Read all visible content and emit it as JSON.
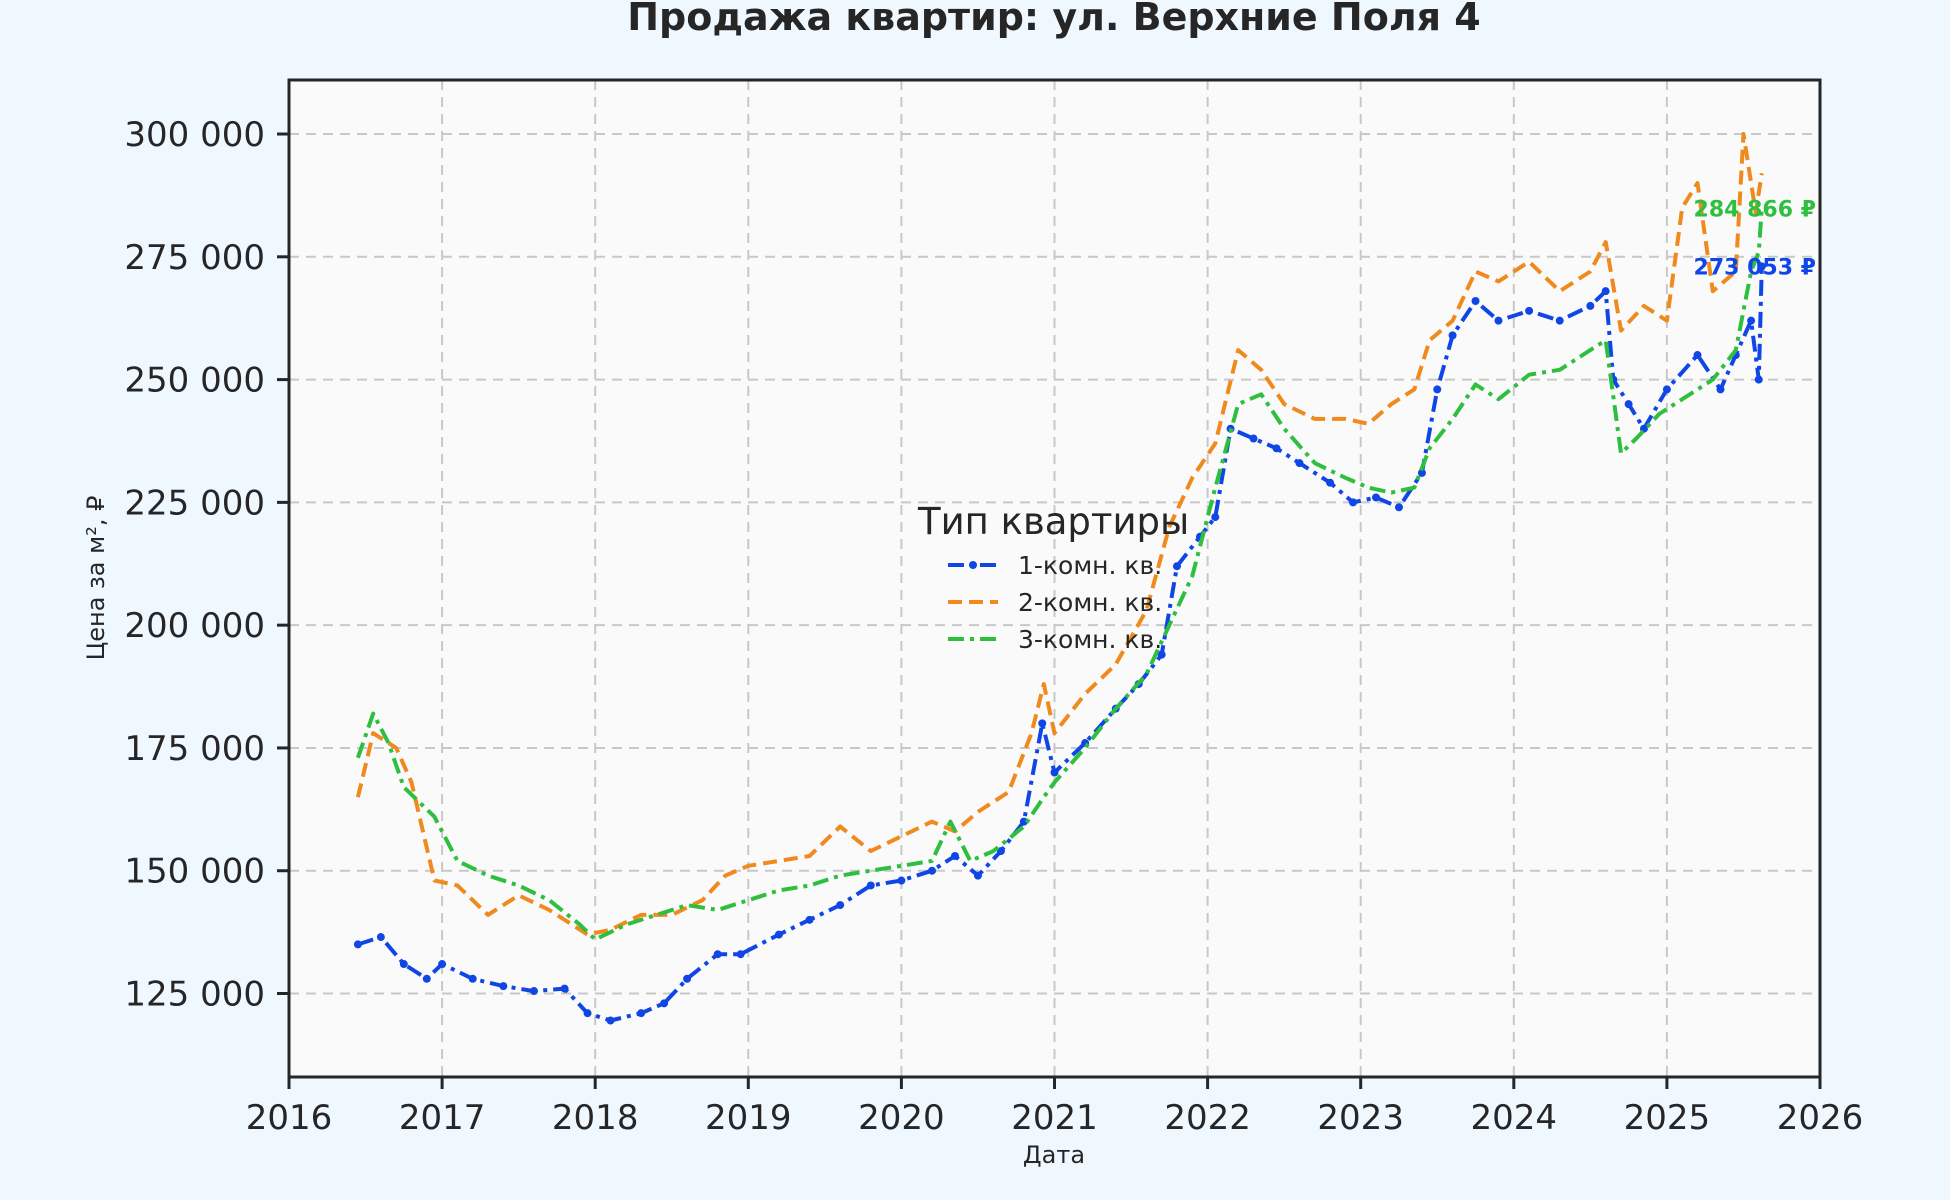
{
  "chart_data": {
    "type": "line",
    "title": "Продажа квартир: ул. Верхние Поля 4",
    "xlabel": "Дата",
    "ylabel": "Цена за м², ₽",
    "xlim": [
      2016,
      2026
    ],
    "ylim": [
      108000,
      311000
    ],
    "x_ticks": [
      2016,
      2017,
      2018,
      2019,
      2020,
      2021,
      2022,
      2023,
      2024,
      2025,
      2026
    ],
    "x_tick_labels": [
      "2016",
      "2017",
      "2018",
      "2019",
      "2020",
      "2021",
      "2022",
      "2023",
      "2024",
      "2025",
      "2026"
    ],
    "y_ticks": [
      125000,
      150000,
      175000,
      200000,
      225000,
      250000,
      275000,
      300000
    ],
    "y_tick_labels": [
      "125 000",
      "150 000",
      "175 000",
      "200 000",
      "225 000",
      "250 000",
      "275 000",
      "300 000"
    ],
    "grid": true,
    "legend": {
      "title": "Тип квартиры",
      "placement": "center"
    },
    "series": [
      {
        "name": "1-комн. кв.",
        "color": "#1046e6",
        "style": "dash-dot-markers",
        "points": [
          [
            2016.45,
            135000
          ],
          [
            2016.6,
            136500
          ],
          [
            2016.75,
            131000
          ],
          [
            2016.9,
            128000
          ],
          [
            2017.0,
            131000
          ],
          [
            2017.2,
            128000
          ],
          [
            2017.4,
            126500
          ],
          [
            2017.6,
            125500
          ],
          [
            2017.8,
            126000
          ],
          [
            2017.95,
            121000
          ],
          [
            2018.1,
            119500
          ],
          [
            2018.3,
            121000
          ],
          [
            2018.45,
            123000
          ],
          [
            2018.6,
            128000
          ],
          [
            2018.8,
            133000
          ],
          [
            2018.95,
            133000
          ],
          [
            2019.2,
            137000
          ],
          [
            2019.4,
            140000
          ],
          [
            2019.6,
            143000
          ],
          [
            2019.8,
            147000
          ],
          [
            2020.0,
            148000
          ],
          [
            2020.2,
            150000
          ],
          [
            2020.35,
            153000
          ],
          [
            2020.5,
            149000
          ],
          [
            2020.65,
            154000
          ],
          [
            2020.8,
            160000
          ],
          [
            2020.92,
            180000
          ],
          [
            2021.0,
            170000
          ],
          [
            2021.2,
            176000
          ],
          [
            2021.4,
            183000
          ],
          [
            2021.55,
            188000
          ],
          [
            2021.7,
            194000
          ],
          [
            2021.8,
            212000
          ],
          [
            2021.95,
            218000
          ],
          [
            2022.05,
            222000
          ],
          [
            2022.15,
            240000
          ],
          [
            2022.3,
            238000
          ],
          [
            2022.45,
            236000
          ],
          [
            2022.6,
            233000
          ],
          [
            2022.8,
            229000
          ],
          [
            2022.95,
            225000
          ],
          [
            2023.1,
            226000
          ],
          [
            2023.25,
            224000
          ],
          [
            2023.4,
            231000
          ],
          [
            2023.5,
            248000
          ],
          [
            2023.6,
            259000
          ],
          [
            2023.75,
            266000
          ],
          [
            2023.9,
            262000
          ],
          [
            2024.1,
            264000
          ],
          [
            2024.3,
            262000
          ],
          [
            2024.5,
            265000
          ],
          [
            2024.6,
            268000
          ],
          [
            2024.65,
            250000
          ],
          [
            2024.75,
            245000
          ],
          [
            2024.85,
            240000
          ],
          [
            2025.0,
            248000
          ],
          [
            2025.2,
            255000
          ],
          [
            2025.35,
            248000
          ],
          [
            2025.45,
            255000
          ],
          [
            2025.55,
            262000
          ],
          [
            2025.6,
            250000
          ],
          [
            2025.62,
            273053
          ]
        ]
      },
      {
        "name": "2-комн. кв.",
        "color": "#f08a1e",
        "style": "dashed",
        "points": [
          [
            2016.45,
            165000
          ],
          [
            2016.55,
            178000
          ],
          [
            2016.7,
            175000
          ],
          [
            2016.8,
            168000
          ],
          [
            2016.95,
            148000
          ],
          [
            2017.1,
            147000
          ],
          [
            2017.3,
            141000
          ],
          [
            2017.5,
            145000
          ],
          [
            2017.7,
            142000
          ],
          [
            2017.95,
            137000
          ],
          [
            2018.1,
            138000
          ],
          [
            2018.3,
            141000
          ],
          [
            2018.5,
            141000
          ],
          [
            2018.7,
            144000
          ],
          [
            2018.85,
            149000
          ],
          [
            2019.0,
            151000
          ],
          [
            2019.2,
            152000
          ],
          [
            2019.4,
            153000
          ],
          [
            2019.6,
            159000
          ],
          [
            2019.8,
            154000
          ],
          [
            2020.0,
            157000
          ],
          [
            2020.2,
            160000
          ],
          [
            2020.35,
            158000
          ],
          [
            2020.5,
            162000
          ],
          [
            2020.7,
            166000
          ],
          [
            2020.85,
            178000
          ],
          [
            2020.93,
            188000
          ],
          [
            2021.0,
            178000
          ],
          [
            2021.2,
            186000
          ],
          [
            2021.4,
            192000
          ],
          [
            2021.6,
            203000
          ],
          [
            2021.75,
            220000
          ],
          [
            2021.9,
            230000
          ],
          [
            2022.05,
            237000
          ],
          [
            2022.2,
            256000
          ],
          [
            2022.35,
            252000
          ],
          [
            2022.5,
            245000
          ],
          [
            2022.7,
            242000
          ],
          [
            2022.9,
            242000
          ],
          [
            2023.05,
            241000
          ],
          [
            2023.2,
            245000
          ],
          [
            2023.35,
            248000
          ],
          [
            2023.45,
            258000
          ],
          [
            2023.6,
            262000
          ],
          [
            2023.75,
            272000
          ],
          [
            2023.9,
            270000
          ],
          [
            2024.1,
            274000
          ],
          [
            2024.3,
            268000
          ],
          [
            2024.5,
            272000
          ],
          [
            2024.6,
            278000
          ],
          [
            2024.7,
            260000
          ],
          [
            2024.85,
            265000
          ],
          [
            2025.0,
            262000
          ],
          [
            2025.1,
            285000
          ],
          [
            2025.2,
            290000
          ],
          [
            2025.3,
            268000
          ],
          [
            2025.45,
            272000
          ],
          [
            2025.5,
            300000
          ],
          [
            2025.58,
            284000
          ],
          [
            2025.62,
            292000
          ]
        ]
      },
      {
        "name": "3-комн. кв.",
        "color": "#2ebf3e",
        "style": "dash-dot",
        "points": [
          [
            2016.45,
            173000
          ],
          [
            2016.55,
            182000
          ],
          [
            2016.65,
            176000
          ],
          [
            2016.75,
            167000
          ],
          [
            2016.95,
            161000
          ],
          [
            2017.1,
            152000
          ],
          [
            2017.3,
            149000
          ],
          [
            2017.5,
            147000
          ],
          [
            2017.7,
            144000
          ],
          [
            2017.9,
            139000
          ],
          [
            2018.0,
            136000
          ],
          [
            2018.2,
            139000
          ],
          [
            2018.4,
            141000
          ],
          [
            2018.6,
            143000
          ],
          [
            2018.8,
            142000
          ],
          [
            2019.0,
            144000
          ],
          [
            2019.2,
            146000
          ],
          [
            2019.4,
            147000
          ],
          [
            2019.6,
            149000
          ],
          [
            2019.8,
            150000
          ],
          [
            2020.0,
            151000
          ],
          [
            2020.2,
            152000
          ],
          [
            2020.32,
            160000
          ],
          [
            2020.45,
            152000
          ],
          [
            2020.6,
            154000
          ],
          [
            2020.8,
            159000
          ],
          [
            2020.93,
            165000
          ],
          [
            2021.0,
            168000
          ],
          [
            2021.2,
            175000
          ],
          [
            2021.4,
            183000
          ],
          [
            2021.6,
            190000
          ],
          [
            2021.75,
            200000
          ],
          [
            2021.9,
            210000
          ],
          [
            2022.05,
            228000
          ],
          [
            2022.2,
            245000
          ],
          [
            2022.35,
            247000
          ],
          [
            2022.5,
            240000
          ],
          [
            2022.7,
            233000
          ],
          [
            2022.9,
            230000
          ],
          [
            2023.05,
            228000
          ],
          [
            2023.2,
            227000
          ],
          [
            2023.35,
            228000
          ],
          [
            2023.45,
            236000
          ],
          [
            2023.6,
            242000
          ],
          [
            2023.75,
            249000
          ],
          [
            2023.9,
            246000
          ],
          [
            2024.1,
            251000
          ],
          [
            2024.3,
            252000
          ],
          [
            2024.5,
            256000
          ],
          [
            2024.6,
            258000
          ],
          [
            2024.7,
            235000
          ],
          [
            2024.8,
            238000
          ],
          [
            2024.95,
            243000
          ],
          [
            2025.15,
            247000
          ],
          [
            2025.3,
            250000
          ],
          [
            2025.45,
            256000
          ],
          [
            2025.55,
            272000
          ],
          [
            2025.6,
            276000
          ],
          [
            2025.62,
            285000
          ]
        ]
      }
    ],
    "end_labels": [
      {
        "series": "3-комн. кв.",
        "text": "284 866 ₽",
        "value": 284866,
        "color": "#2ebf3e"
      },
      {
        "series": "1-комн. кв.",
        "text": "273 053 ₽",
        "value": 273053,
        "color": "#1046e6"
      }
    ]
  }
}
